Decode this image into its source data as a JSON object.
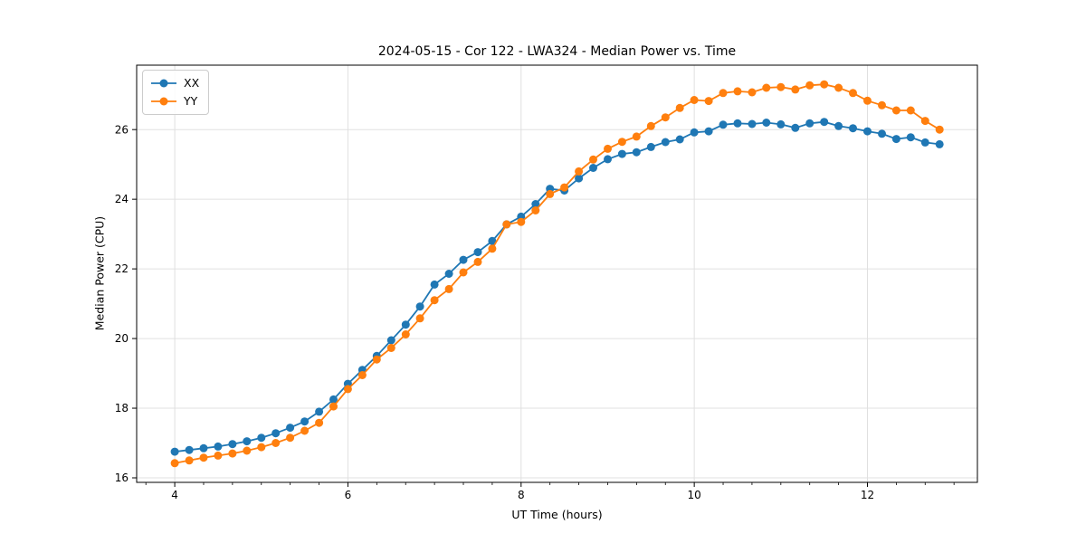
{
  "chart": {
    "title": "2024-05-15 - Cor 122 - LWA324 - Median Power vs. Time",
    "xlabel": "UT Time (hours)",
    "ylabel": "Median Power (CPU)"
  },
  "chart_data": {
    "type": "line",
    "title": "2024-05-15 - Cor 122 - LWA324 - Median Power vs. Time",
    "xlabel": "UT Time (hours)",
    "ylabel": "Median Power (CPU)",
    "xlim": [
      3.56,
      13.27
    ],
    "ylim": [
      15.87,
      27.85
    ],
    "x_ticks": [
      4,
      6,
      8,
      10,
      12
    ],
    "y_ticks": [
      16,
      18,
      20,
      22,
      24,
      26
    ],
    "x_minor_step": 0.3333333,
    "grid": true,
    "grid_color": "#e0e0e0",
    "spine_color": "#000000",
    "marker": "circle",
    "marker_radius": 4.5,
    "line_width": 1.8,
    "legend_position": "upper left",
    "x": [
      4.0,
      4.167,
      4.333,
      4.5,
      4.667,
      4.833,
      5.0,
      5.167,
      5.333,
      5.5,
      5.667,
      5.833,
      6.0,
      6.167,
      6.333,
      6.5,
      6.667,
      6.833,
      7.0,
      7.167,
      7.333,
      7.5,
      7.667,
      7.833,
      8.0,
      8.167,
      8.333,
      8.5,
      8.667,
      8.833,
      9.0,
      9.167,
      9.333,
      9.5,
      9.667,
      9.833,
      10.0,
      10.167,
      10.333,
      10.5,
      10.667,
      10.833,
      11.0,
      11.167,
      11.333,
      11.5,
      11.667,
      11.833,
      12.0,
      12.167,
      12.333,
      12.5,
      12.667,
      12.833
    ],
    "series": [
      {
        "name": "XX",
        "color": "#1f77b4",
        "values": [
          16.75,
          16.8,
          16.85,
          16.9,
          16.97,
          17.05,
          17.15,
          17.28,
          17.44,
          17.62,
          17.9,
          18.25,
          18.7,
          19.1,
          19.5,
          19.95,
          20.4,
          20.92,
          21.55,
          21.86,
          22.26,
          22.48,
          22.8,
          23.28,
          23.5,
          23.86,
          24.3,
          24.25,
          24.6,
          24.9,
          25.15,
          25.3,
          25.35,
          25.5,
          25.64,
          25.72,
          25.92,
          25.95,
          26.14,
          26.18,
          26.16,
          26.2,
          26.15,
          26.05,
          26.18,
          26.22,
          26.1,
          26.04,
          25.95,
          25.88,
          25.73,
          25.78,
          25.63,
          25.58
        ]
      },
      {
        "name": "YY",
        "color": "#ff7f0e",
        "values": [
          16.42,
          16.5,
          16.58,
          16.64,
          16.7,
          16.78,
          16.88,
          17.0,
          17.15,
          17.35,
          17.58,
          18.05,
          18.55,
          18.95,
          19.4,
          19.73,
          20.12,
          20.58,
          21.1,
          21.42,
          21.9,
          22.2,
          22.58,
          23.28,
          23.35,
          23.68,
          24.15,
          24.34,
          24.8,
          25.14,
          25.45,
          25.65,
          25.8,
          26.1,
          26.35,
          26.62,
          26.85,
          26.82,
          27.05,
          27.1,
          27.07,
          27.2,
          27.22,
          27.15,
          27.27,
          27.3,
          27.2,
          27.05,
          26.83,
          26.7,
          26.55,
          26.55,
          26.25,
          26.0
        ]
      }
    ]
  }
}
